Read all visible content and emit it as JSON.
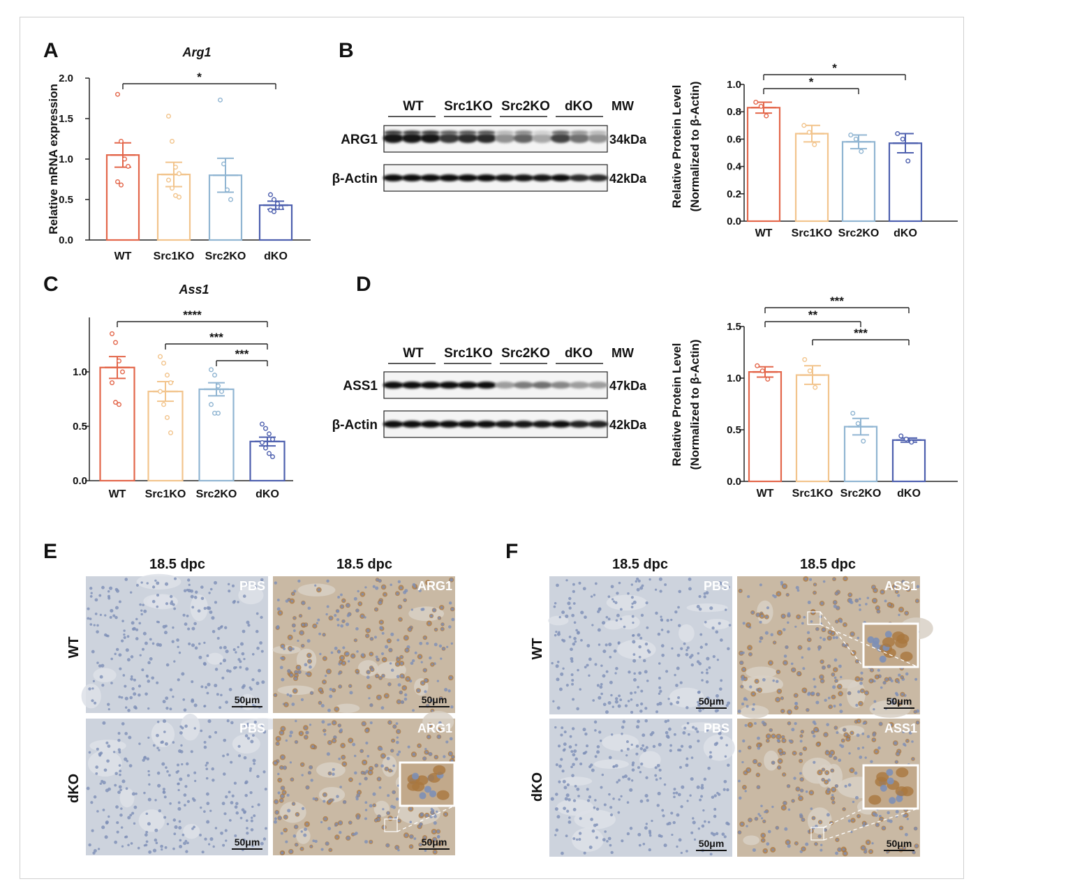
{
  "colors": {
    "WT": "#e3664a",
    "Src1KO": "#f2c48c",
    "Src2KO": "#90b5d2",
    "dKO": "#4d5fae",
    "tissue_bg": "#c8cfd9",
    "nucleus": "#7d8fb6",
    "stain_brown": "#a9773f"
  },
  "panels": {
    "A": "A",
    "B": "B",
    "C": "C",
    "D": "D",
    "E": "E",
    "F": "F"
  },
  "chart_data": [
    {
      "id": "A",
      "type": "bar",
      "title": "Arg1",
      "ylabel": "Relative mRNA expression",
      "categories": [
        "WT",
        "Src1KO",
        "Src2KO",
        "dKO"
      ],
      "values": [
        1.05,
        0.81,
        0.8,
        0.43
      ],
      "sem": [
        0.15,
        0.15,
        0.21,
        0.05
      ],
      "points": [
        [
          1.8,
          1.22,
          1.0,
          0.91,
          0.72,
          0.68
        ],
        [
          1.53,
          1.22,
          0.9,
          0.82,
          0.74,
          0.64,
          0.55,
          0.53
        ],
        [
          1.73,
          0.94,
          0.62,
          0.5
        ],
        [
          0.56,
          0.5,
          0.45,
          0.4,
          0.37,
          0.35
        ]
      ],
      "ylim": [
        0,
        2.0
      ],
      "yticks": [
        "0.0",
        "0.5",
        "1.0",
        "1.5",
        "2.0"
      ],
      "significance": [
        {
          "from": 0,
          "to": 3,
          "label": "*"
        }
      ]
    },
    {
      "id": "B",
      "type": "bar",
      "title": "",
      "ylabel": [
        "Relative Protein Level",
        "(Normalized to β-Actin)"
      ],
      "categories": [
        "WT",
        "Src1KO",
        "Src2KO",
        "dKO"
      ],
      "values": [
        0.83,
        0.64,
        0.58,
        0.57
      ],
      "sem": [
        0.04,
        0.06,
        0.05,
        0.07
      ],
      "points": [
        [
          0.87,
          0.84,
          0.77
        ],
        [
          0.7,
          0.65,
          0.56
        ],
        [
          0.63,
          0.6,
          0.51
        ],
        [
          0.64,
          0.6,
          0.44
        ]
      ],
      "ylim": [
        0,
        1.0
      ],
      "yticks": [
        "0.0",
        "0.2",
        "0.4",
        "0.6",
        "0.8",
        "1.0"
      ],
      "significance": [
        {
          "from": 0,
          "to": 3,
          "label": "*"
        },
        {
          "from": 0,
          "to": 2,
          "label": "*"
        }
      ]
    },
    {
      "id": "C",
      "type": "bar",
      "title": "Ass1",
      "ylabel": "",
      "categories": [
        "WT",
        "Src1KO",
        "Src2KO",
        "dKO"
      ],
      "values": [
        1.04,
        0.82,
        0.84,
        0.36
      ],
      "sem": [
        0.1,
        0.09,
        0.06,
        0.04
      ],
      "points": [
        [
          1.35,
          1.27,
          1.1,
          1.0,
          0.9,
          0.72,
          0.7
        ],
        [
          1.14,
          1.08,
          0.97,
          0.9,
          0.82,
          0.7,
          0.58,
          0.44
        ],
        [
          1.02,
          0.97,
          0.87,
          0.82,
          0.7,
          0.62,
          0.62
        ],
        [
          0.52,
          0.48,
          0.43,
          0.38,
          0.35,
          0.3,
          0.25,
          0.22
        ]
      ],
      "ylim": [
        0,
        1.5
      ],
      "yticks": [
        "0.0",
        "0.5",
        "1.0"
      ],
      "significance": [
        {
          "from": 0,
          "to": 3,
          "label": "****"
        },
        {
          "from": 1,
          "to": 3,
          "label": "***"
        },
        {
          "from": 2,
          "to": 3,
          "label": "***"
        }
      ]
    },
    {
      "id": "D",
      "type": "bar",
      "title": "",
      "ylabel": [
        "Relative Protein Level",
        "(Normalized to β-Actin)"
      ],
      "categories": [
        "WT",
        "Src1KO",
        "Src2KO",
        "dKO"
      ],
      "values": [
        1.06,
        1.03,
        0.53,
        0.4
      ],
      "sem": [
        0.05,
        0.09,
        0.08,
        0.02
      ],
      "points": [
        [
          1.12,
          1.07,
          0.99
        ],
        [
          1.18,
          1.07,
          0.91
        ],
        [
          0.66,
          0.56,
          0.39
        ],
        [
          0.44,
          0.41,
          0.38
        ]
      ],
      "ylim": [
        0,
        1.5
      ],
      "yticks": [
        "0.0",
        "0.5",
        "1.0",
        "1.5"
      ],
      "significance": [
        {
          "from": 0,
          "to": 3,
          "label": "***"
        },
        {
          "from": 0,
          "to": 2,
          "label": "**"
        },
        {
          "from": 1,
          "to": 3,
          "label": "***"
        }
      ]
    }
  ],
  "blots": {
    "B": {
      "groups": [
        "WT",
        "Src1KO",
        "Src2KO",
        "dKO"
      ],
      "mw_header": "MW",
      "rows": [
        {
          "label": "ARG1",
          "mw": "34kDa"
        },
        {
          "label": "β-Actin",
          "mw": "42kDa"
        }
      ]
    },
    "D": {
      "groups": [
        "WT",
        "Src1KO",
        "Src2KO",
        "dKO"
      ],
      "mw_header": "MW",
      "rows": [
        {
          "label": "ASS1",
          "mw": "47kDa"
        },
        {
          "label": "β-Actin",
          "mw": "42kDa"
        }
      ]
    }
  },
  "ihc": {
    "E": {
      "col_titles": [
        "18.5 dpc",
        "18.5 dpc"
      ],
      "row_labels": [
        "WT",
        "dKO"
      ],
      "tiles": [
        {
          "corner": "PBS",
          "scale": "50μm"
        },
        {
          "corner": "ARG1",
          "scale": "50μm"
        },
        {
          "corner": "PBS",
          "scale": "50μm"
        },
        {
          "corner": "ARG1",
          "scale": "50μm"
        }
      ]
    },
    "F": {
      "col_titles": [
        "18.5 dpc",
        "18.5 dpc"
      ],
      "row_labels": [
        "WT",
        "dKO"
      ],
      "tiles": [
        {
          "corner": "PBS",
          "scale": "50μm"
        },
        {
          "corner": "ASS1",
          "scale": "50μm"
        },
        {
          "corner": "PBS",
          "scale": "50μm"
        },
        {
          "corner": "ASS1",
          "scale": "50μm"
        }
      ]
    }
  }
}
